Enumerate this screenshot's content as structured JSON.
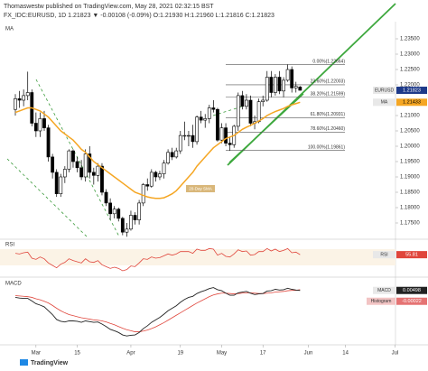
{
  "header": {
    "line1": "Thomaswestw published on TradingView.com, May 28, 2021 02:32:15 BST",
    "line2": "FX_IDC:EURUSD, 1D 1.21823 ▼ -0.00108 (-0.09%) O:1.21930 H:1.21960 L:1.21816 C:1.21823"
  },
  "footer": {
    "logo": "TradingView"
  },
  "chart_data": {
    "type": "candlestick",
    "pane_label": "MA",
    "symbol": "EURUSD",
    "ma_label": "MA",
    "sma_note": "20-Day SMA",
    "candles": [
      [
        1.212,
        1.217,
        1.21,
        1.2155
      ],
      [
        1.2155,
        1.218,
        1.2125,
        1.215
      ],
      [
        1.215,
        1.2185,
        1.213,
        1.2165
      ],
      [
        1.2165,
        1.2243,
        1.215,
        1.2175
      ],
      [
        1.2175,
        1.2185,
        1.2065,
        1.2075
      ],
      [
        1.2075,
        1.211,
        1.203,
        1.205
      ],
      [
        1.205,
        1.211,
        1.203,
        1.209
      ],
      [
        1.209,
        1.2115,
        1.205,
        1.206
      ],
      [
        1.206,
        1.207,
        1.195,
        1.1965
      ],
      [
        1.1965,
        1.1975,
        1.1895,
        1.1915
      ],
      [
        1.1915,
        1.1925,
        1.1835,
        1.1845
      ],
      [
        1.1845,
        1.191,
        1.1835,
        1.19
      ],
      [
        1.19,
        1.1935,
        1.188,
        1.1925
      ],
      [
        1.1925,
        1.199,
        1.1915,
        1.1985
      ],
      [
        1.1985,
        1.199,
        1.193,
        1.195
      ],
      [
        1.195,
        1.1965,
        1.1915,
        1.193
      ],
      [
        1.193,
        1.1955,
        1.189,
        1.19
      ],
      [
        1.19,
        1.199,
        1.1885,
        1.1975
      ],
      [
        1.1975,
        1.2,
        1.1895,
        1.1915
      ],
      [
        1.1915,
        1.193,
        1.1875,
        1.1905
      ],
      [
        1.1905,
        1.1945,
        1.1885,
        1.1935
      ],
      [
        1.1935,
        1.1945,
        1.184,
        1.185
      ],
      [
        1.185,
        1.186,
        1.1805,
        1.1815
      ],
      [
        1.1815,
        1.183,
        1.176,
        1.178
      ],
      [
        1.178,
        1.1805,
        1.1765,
        1.1795
      ],
      [
        1.1795,
        1.18,
        1.1755,
        1.1765
      ],
      [
        1.1765,
        1.177,
        1.171,
        1.172
      ],
      [
        1.172,
        1.175,
        1.1705,
        1.173
      ],
      [
        1.173,
        1.179,
        1.1725,
        1.1775
      ],
      [
        1.1775,
        1.1785,
        1.1745,
        1.176
      ],
      [
        1.176,
        1.1825,
        1.1745,
        1.1815
      ],
      [
        1.1815,
        1.188,
        1.1805,
        1.1875
      ],
      [
        1.1875,
        1.1895,
        1.1855,
        1.187
      ],
      [
        1.187,
        1.1925,
        1.1865,
        1.1915
      ],
      [
        1.1915,
        1.192,
        1.1885,
        1.19
      ],
      [
        1.19,
        1.192,
        1.189,
        1.191
      ],
      [
        1.191,
        1.1955,
        1.1895,
        1.1945
      ],
      [
        1.1945,
        1.199,
        1.194,
        1.198
      ],
      [
        1.198,
        1.1995,
        1.1955,
        1.1965
      ],
      [
        1.1965,
        1.1995,
        1.196,
        1.1985
      ],
      [
        1.1985,
        1.205,
        1.1975,
        1.2035
      ],
      [
        1.2035,
        1.208,
        1.202,
        1.2035
      ],
      [
        1.2035,
        1.205,
        1.2,
        1.2035
      ],
      [
        1.2035,
        1.207,
        1.1995,
        1.2015
      ],
      [
        1.2015,
        1.21,
        1.2005,
        1.2095
      ],
      [
        1.2095,
        1.2115,
        1.2075,
        1.2085
      ],
      [
        1.2085,
        1.2105,
        1.206,
        1.209
      ],
      [
        1.209,
        1.2135,
        1.2075,
        1.2125
      ],
      [
        1.2125,
        1.215,
        1.211,
        1.212
      ],
      [
        1.212,
        1.2125,
        1.2015,
        1.202
      ],
      [
        1.202,
        1.2075,
        1.201,
        1.206
      ],
      [
        1.206,
        1.2075,
        1.2,
        1.201
      ],
      [
        1.201,
        1.203,
        1.1985,
        1.2005
      ],
      [
        1.2005,
        1.207,
        1.1995,
        1.2065
      ],
      [
        1.2065,
        1.2175,
        1.205,
        1.2165
      ],
      [
        1.2165,
        1.218,
        1.212,
        1.213
      ],
      [
        1.213,
        1.217,
        1.212,
        1.215
      ],
      [
        1.215,
        1.2165,
        1.2065,
        1.2075
      ],
      [
        1.2075,
        1.21,
        1.2055,
        1.208
      ],
      [
        1.208,
        1.2155,
        1.2075,
        1.2145
      ],
      [
        1.2145,
        1.2165,
        1.213,
        1.215
      ],
      [
        1.215,
        1.2245,
        1.2145,
        1.2225
      ],
      [
        1.2225,
        1.2245,
        1.216,
        1.2175
      ],
      [
        1.2175,
        1.2235,
        1.2165,
        1.2225
      ],
      [
        1.2225,
        1.2245,
        1.217,
        1.218
      ],
      [
        1.218,
        1.2225,
        1.216,
        1.2215
      ],
      [
        1.2215,
        1.2266,
        1.221,
        1.225
      ],
      [
        1.225,
        1.226,
        1.2175,
        1.219
      ],
      [
        1.219,
        1.221,
        1.2175,
        1.2195
      ],
      [
        1.2193,
        1.2196,
        1.21816,
        1.21823
      ]
    ],
    "ma": [
      1.211,
      1.2115,
      1.212,
      1.2125,
      1.2125,
      1.212,
      1.2115,
      1.2105,
      1.2095,
      1.208,
      1.2065,
      1.205,
      1.204,
      1.203,
      1.202,
      1.2005,
      1.199,
      1.198,
      1.1965,
      1.195,
      1.194,
      1.193,
      1.192,
      1.191,
      1.19,
      1.189,
      1.188,
      1.187,
      1.186,
      1.185,
      1.1845,
      1.184,
      1.1835,
      1.1832,
      1.183,
      1.183,
      1.1832,
      1.1838,
      1.1845,
      1.1855,
      1.187,
      1.1885,
      1.19,
      1.1915,
      1.1935,
      1.195,
      1.1965,
      1.198,
      1.1995,
      1.2005,
      1.2015,
      1.2025,
      1.203,
      1.2035,
      1.2045,
      1.2055,
      1.2062,
      1.2068,
      1.2075,
      1.2082,
      1.209,
      1.21,
      1.2107,
      1.2113,
      1.2118,
      1.2123,
      1.213,
      1.2135,
      1.2139,
      1.21433
    ],
    "ma_color": "#f5a623",
    "ylim": [
      1.17,
      1.24
    ],
    "yticks": [
      {
        "value": 1.175,
        "label": "1.17500"
      },
      {
        "value": 1.18,
        "label": "1.18000"
      },
      {
        "value": 1.185,
        "label": "1.18500"
      },
      {
        "value": 1.19,
        "label": "1.19000"
      },
      {
        "value": 1.195,
        "label": "1.19500"
      },
      {
        "value": 1.2,
        "label": "1.20000"
      },
      {
        "value": 1.205,
        "label": "1.20500"
      },
      {
        "value": 1.21,
        "label": "1.21000"
      },
      {
        "value": 1.22,
        "label": "1.22000"
      },
      {
        "value": 1.225,
        "label": "1.22500"
      },
      {
        "value": 1.23,
        "label": "1.23000"
      },
      {
        "value": 1.235,
        "label": "1.23500"
      }
    ],
    "xticks": [
      {
        "value": 5,
        "label": "Mar"
      },
      {
        "value": 15,
        "label": "15"
      },
      {
        "value": 28,
        "label": "Apr"
      },
      {
        "value": 40,
        "label": "19"
      },
      {
        "value": 50,
        "label": "May"
      },
      {
        "value": 60,
        "label": "17"
      },
      {
        "value": 71,
        "label": "Jun"
      },
      {
        "value": 80,
        "label": "14"
      },
      {
        "value": 92,
        "label": "Jul"
      }
    ],
    "fib": [
      {
        "value": 1.22664,
        "label": "0.00%(1.22664)"
      },
      {
        "value": 1.22003,
        "label": "23.60%(1.22003)"
      },
      {
        "value": 1.21599,
        "label": "38.20%(1.21599)"
      },
      {
        "value": 1.20931,
        "label": "61.80%(1.20931)"
      },
      {
        "value": 1.2046,
        "label": "78.60%(1.20460)"
      },
      {
        "value": 1.19861,
        "label": "100.00%(1.19861)"
      }
    ],
    "rsi": {
      "label": "RSI",
      "ylim": [
        20,
        80
      ],
      "color": "#e0463c",
      "values": [
        58,
        57,
        59,
        60,
        50,
        48,
        52,
        49,
        42,
        38,
        34,
        40,
        43,
        49,
        46,
        44,
        42,
        49,
        44,
        43,
        46,
        39,
        36,
        33,
        35,
        33,
        29,
        31,
        37,
        36,
        42,
        49,
        48,
        52,
        50,
        51,
        54,
        57,
        55,
        57,
        61,
        61,
        61,
        58,
        65,
        63,
        63,
        66,
        65,
        55,
        58,
        53,
        52,
        57,
        64,
        61,
        62,
        55,
        56,
        61,
        61,
        66,
        62,
        65,
        61,
        63,
        66,
        59,
        60,
        55.81
      ]
    },
    "macd": {
      "label": "MACD",
      "hist_label": "Histogram",
      "hist_value": -0.00022,
      "ylim": [
        -0.01,
        0.008
      ],
      "values": [
        0.003,
        0.0028,
        0.0027,
        0.0027,
        0.002,
        0.0012,
        0.0008,
        0.0003,
        -0.0008,
        -0.0019,
        -0.0033,
        -0.0038,
        -0.004,
        -0.0037,
        -0.0037,
        -0.0038,
        -0.0041,
        -0.0037,
        -0.0039,
        -0.0041,
        -0.004,
        -0.0046,
        -0.0053,
        -0.0061,
        -0.0065,
        -0.007,
        -0.0077,
        -0.008,
        -0.0078,
        -0.0077,
        -0.007,
        -0.0059,
        -0.0051,
        -0.0041,
        -0.0034,
        -0.0027,
        -0.0018,
        -0.0008,
        -0.0001,
        0.0006,
        0.0016,
        0.0024,
        0.003,
        0.0033,
        0.0041,
        0.0046,
        0.005,
        0.0055,
        0.0058,
        0.0052,
        0.0049,
        0.0042,
        0.0036,
        0.0036,
        0.0043,
        0.0045,
        0.0047,
        0.0042,
        0.0038,
        0.004,
        0.0041,
        0.0048,
        0.0049,
        0.0053,
        0.0051,
        0.0052,
        0.0056,
        0.0053,
        0.0051,
        0.00498
      ],
      "signal": [
        0.0035,
        0.0034,
        0.0033,
        0.0032,
        0.003,
        0.0026,
        0.0023,
        0.0019,
        0.0014,
        0.0007,
        -0.0001,
        -0.0008,
        -0.0014,
        -0.0019,
        -0.0022,
        -0.0025,
        -0.0028,
        -0.003,
        -0.0032,
        -0.0034,
        -0.0035,
        -0.0037,
        -0.004,
        -0.0044,
        -0.0048,
        -0.0053,
        -0.0058,
        -0.0062,
        -0.0065,
        -0.0068,
        -0.0068,
        -0.0066,
        -0.0063,
        -0.0059,
        -0.0054,
        -0.0048,
        -0.0042,
        -0.0035,
        -0.0028,
        -0.0021,
        -0.0014,
        -0.0007,
        0.0,
        0.0007,
        0.0014,
        0.002,
        0.0026,
        0.0032,
        0.0037,
        0.004,
        0.0042,
        0.0042,
        0.0041,
        0.004,
        0.0041,
        0.0042,
        0.0043,
        0.0043,
        0.0042,
        0.0041,
        0.0041,
        0.0042,
        0.0043,
        0.0045,
        0.0046,
        0.0047,
        0.0049,
        0.005,
        0.005,
        0.0052
      ],
      "color": "#222222",
      "signal_color": "#e0463c"
    }
  }
}
